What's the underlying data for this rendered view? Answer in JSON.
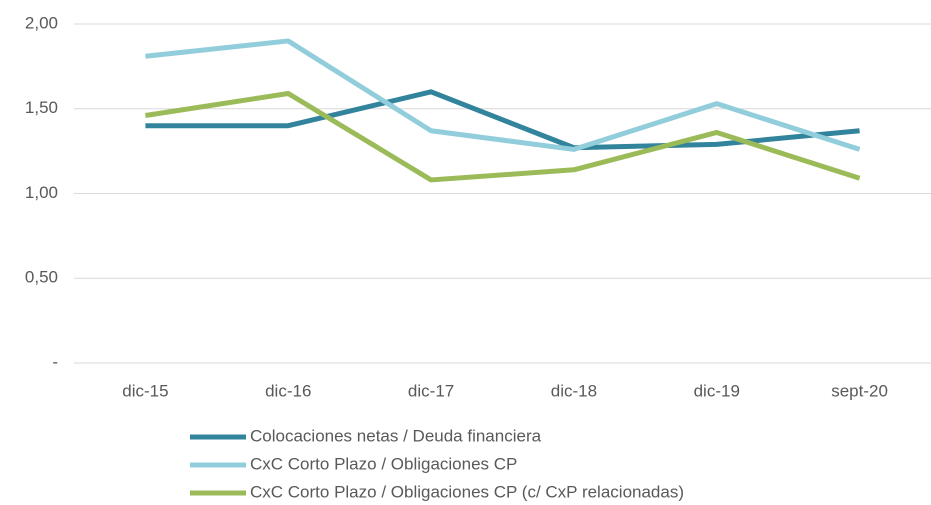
{
  "chart_data": {
    "type": "line",
    "categories": [
      "dic-15",
      "dic-16",
      "dic-17",
      "dic-18",
      "dic-19",
      "sept-20"
    ],
    "series": [
      {
        "name": "Colocaciones netas / Deuda financiera",
        "color": "#31849b",
        "values": [
          1.4,
          1.4,
          1.6,
          1.27,
          1.29,
          1.37
        ]
      },
      {
        "name": "CxC Corto Plazo / Obligaciones CP",
        "color": "#92cddc",
        "values": [
          1.81,
          1.9,
          1.37,
          1.26,
          1.53,
          1.26
        ]
      },
      {
        "name": "CxC Corto Plazo / Obligaciones CP (c/ CxP relacionadas)",
        "color": "#9bbb59",
        "values": [
          1.46,
          1.59,
          1.08,
          1.14,
          1.36,
          1.09
        ]
      }
    ],
    "ylim": [
      0,
      2
    ],
    "yticks": [
      {
        "value": 0,
        "label": "-"
      },
      {
        "value": 0.5,
        "label": "0,50"
      },
      {
        "value": 1,
        "label": "1,00"
      },
      {
        "value": 1.5,
        "label": "1,50"
      },
      {
        "value": 2,
        "label": "2,00"
      }
    ],
    "grid": true
  }
}
